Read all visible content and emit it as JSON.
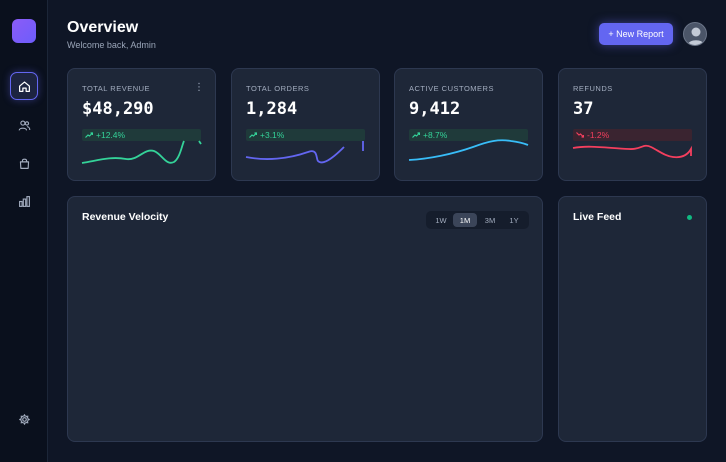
{
  "header": {
    "title": "Overview",
    "subtitle": "Welcome back, Admin",
    "new_report_label": "+ New Report"
  },
  "sidebar": {
    "items": [
      {
        "icon": "home-icon",
        "active": true
      },
      {
        "icon": "users-icon",
        "active": false
      },
      {
        "icon": "shopping-bag-icon",
        "active": false
      },
      {
        "icon": "bar-chart-icon",
        "active": false
      },
      {
        "icon": "gear-icon",
        "active": false
      }
    ]
  },
  "stats": [
    {
      "label": "TOTAL REVENUE",
      "value": "$48,290",
      "change": "+12.4%",
      "trend": "up",
      "color": "#34d399"
    },
    {
      "label": "TOTAL ORDERS",
      "value": "1,284",
      "change": "+3.1%",
      "trend": "up",
      "color": "#6366f1"
    },
    {
      "label": "ACTIVE CUSTOMERS",
      "value": "9,412",
      "change": "+8.7%",
      "trend": "up",
      "color": "#38bdf8"
    },
    {
      "label": "REFUNDS",
      "value": "37",
      "change": "-1.2%",
      "trend": "down",
      "color": "#f43f5e"
    }
  ],
  "revenue_panel": {
    "title": "Revenue Velocity",
    "ranges": [
      "1W",
      "1M",
      "3M",
      "1Y"
    ],
    "selected_range": "1M"
  },
  "live_feed": {
    "title": "Live Feed",
    "status_color": "#10b981"
  }
}
